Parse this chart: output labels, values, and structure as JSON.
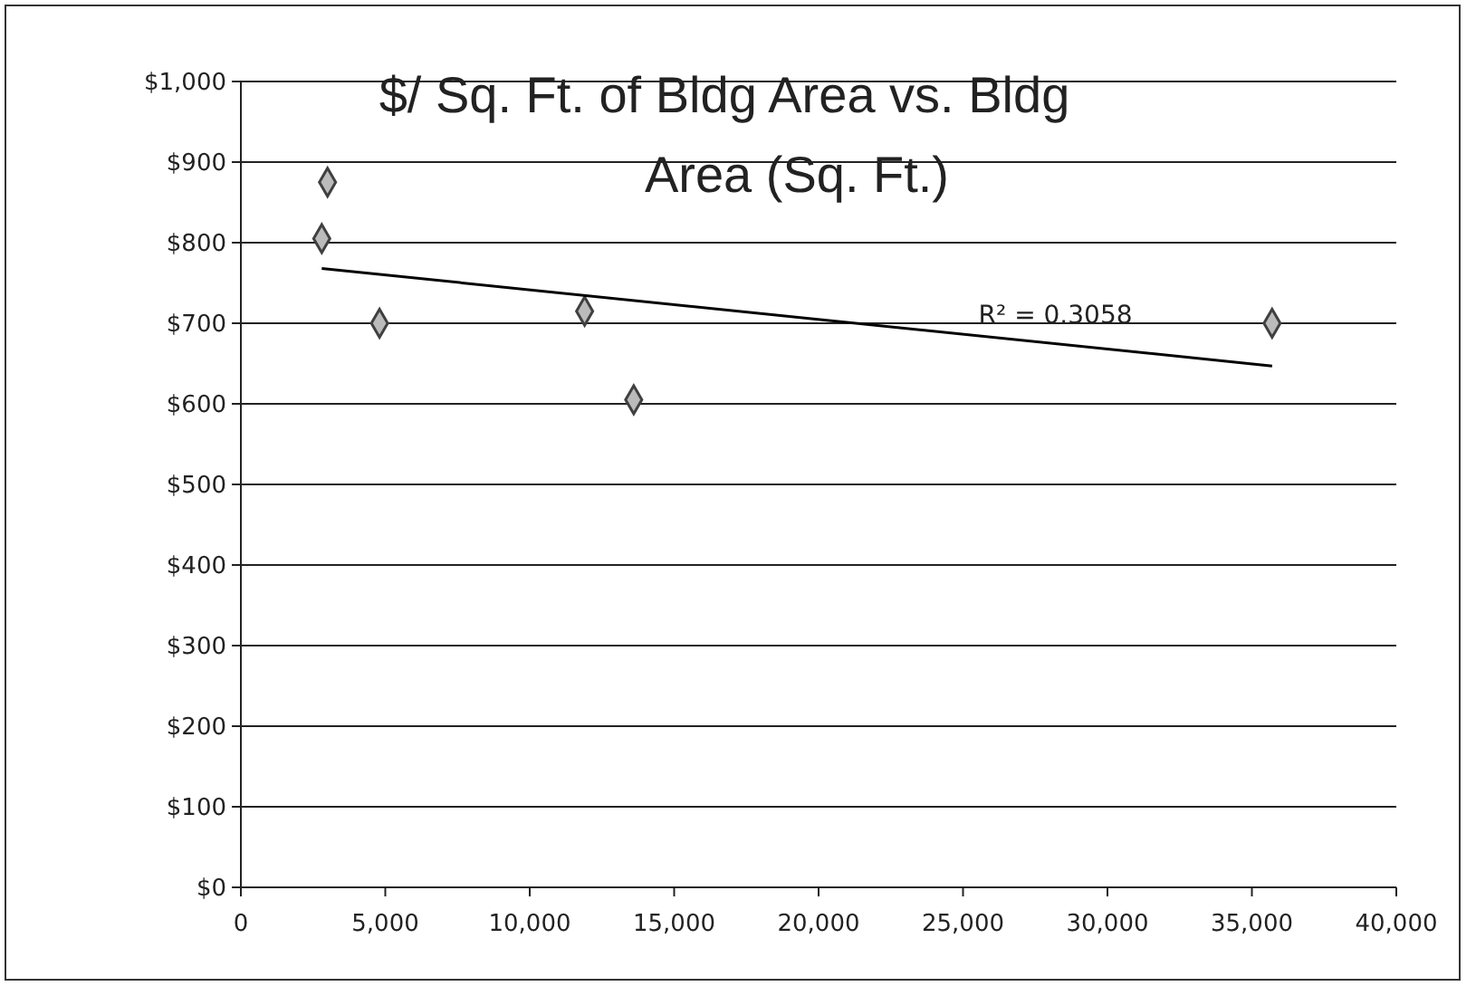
{
  "chart_data": {
    "type": "scatter",
    "title": "$/ Sq. Ft. of Bldg Area  vs. Bldg\nArea (Sq. Ft.)",
    "series": [
      {
        "type": "scatter",
        "color": "#404040",
        "marker": "diamond",
        "x": [
          3000,
          2800,
          4800,
          11900,
          13600,
          35700
        ],
        "values": [
          875,
          805,
          700,
          715,
          605,
          700
        ]
      },
      {
        "type": "line",
        "color": "#000000",
        "x": [
          2800,
          35700
        ],
        "values": [
          768,
          647
        ]
      }
    ],
    "annotations": [
      "R² = 0.3058"
    ],
    "xlim": [
      0,
      40000
    ],
    "xticks": [
      {
        "value": 0,
        "label": "0"
      },
      {
        "value": 5000,
        "label": "5,000"
      },
      {
        "value": 10000,
        "label": "10,000"
      },
      {
        "value": 15000,
        "label": "15,000"
      },
      {
        "value": 20000,
        "label": "20,000"
      },
      {
        "value": 25000,
        "label": "25,000"
      },
      {
        "value": 30000,
        "label": "30,000"
      },
      {
        "value": 35000,
        "label": "35,000"
      },
      {
        "value": 40000,
        "label": "40,000"
      }
    ],
    "ylim": [
      0,
      1000
    ],
    "yticks": [
      {
        "value": 0,
        "label": "$0"
      },
      {
        "value": 100,
        "label": "$100"
      },
      {
        "value": 200,
        "label": "$200"
      },
      {
        "value": 300,
        "label": "$300"
      },
      {
        "value": 400,
        "label": "$400"
      },
      {
        "value": 500,
        "label": "$500"
      },
      {
        "value": 600,
        "label": "$600"
      },
      {
        "value": 700,
        "label": "$700"
      },
      {
        "value": 800,
        "label": "$800"
      },
      {
        "value": 900,
        "label": "$900"
      },
      {
        "value": 1000,
        "label": "$1,000"
      }
    ],
    "grid": "y"
  }
}
